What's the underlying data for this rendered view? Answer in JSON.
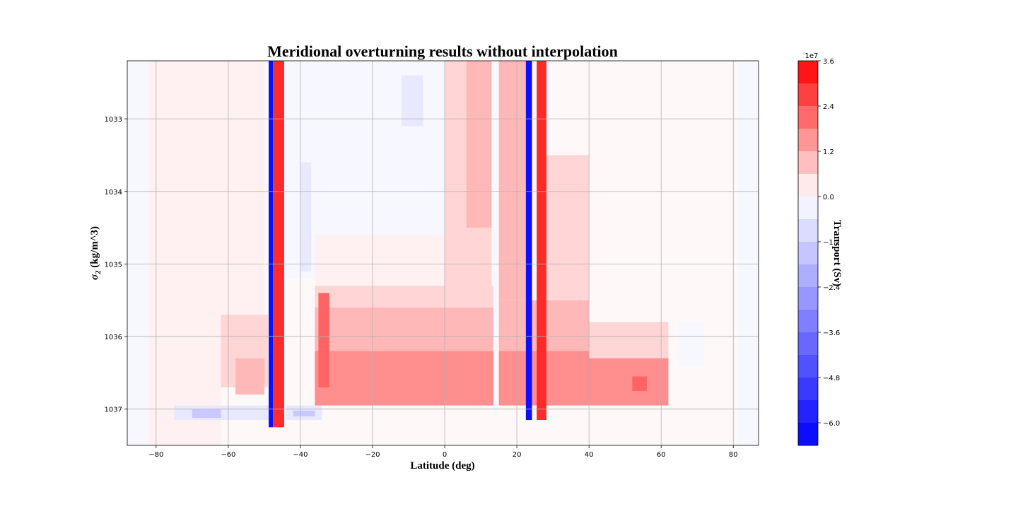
{
  "chart_data": {
    "type": "heatmap",
    "subtype": "filled-contour",
    "title": "Meridional overturning results without interpolation",
    "xlabel": "Latitude (deg)",
    "ylabel": "σ",
    "ylabel_sub": "2",
    "ylabel_rest": " (kg/m^3)",
    "xlim": [
      -88,
      87
    ],
    "ylim": [
      1037.5,
      1032.2
    ],
    "y_inverted": true,
    "xticks": [
      -80,
      -60,
      -40,
      -20,
      0,
      20,
      40,
      60,
      80
    ],
    "xtick_labels": [
      "−80",
      "−60",
      "−40",
      "−20",
      "0",
      "20",
      "40",
      "60",
      "80"
    ],
    "yticks": [
      1033,
      1034,
      1035,
      1036,
      1037
    ],
    "ytick_labels": [
      "1033",
      "1034",
      "1035",
      "1036",
      "1037"
    ],
    "grid": true,
    "colorscale": "bwr",
    "colorbar": {
      "label": "Transport (Sv)",
      "offset_text": "1e7",
      "range": [
        -6.6,
        3.6
      ],
      "tick_values": [
        3.6,
        2.4,
        1.2,
        0.0,
        -1.2,
        -2.4,
        -3.6,
        -4.8,
        -6.0
      ],
      "tick_labels": [
        "3.6",
        "2.4",
        "1.2",
        "0.0",
        "−1.2",
        "−2.4",
        "−3.6",
        "−4.8",
        "−6.0"
      ]
    },
    "regions": [
      {
        "x": [
          -88,
          -82
        ],
        "y": [
          1032.2,
          1037.5
        ],
        "value": -0.2
      },
      {
        "x": [
          -82,
          -62
        ],
        "y": [
          1032.2,
          1037.5
        ],
        "value": 0.2
      },
      {
        "x": [
          -62,
          -50
        ],
        "y": [
          1032.2,
          1035.7
        ],
        "value": 0.2
      },
      {
        "x": [
          -62,
          -49
        ],
        "y": [
          1035.7,
          1036.7
        ],
        "value": 0.6
      },
      {
        "x": [
          -58,
          -50
        ],
        "y": [
          1036.3,
          1036.8
        ],
        "value": 1.0
      },
      {
        "x": [
          -75,
          -48
        ],
        "y": [
          1036.95,
          1037.15
        ],
        "value": -0.6
      },
      {
        "x": [
          -70,
          -62
        ],
        "y": [
          1037.0,
          1037.12
        ],
        "value": -1.4
      },
      {
        "x": [
          -45,
          -20
        ],
        "y": [
          1032.2,
          1035.2
        ],
        "value": -0.2
      },
      {
        "x": [
          -40,
          -37
        ],
        "y": [
          1033.6,
          1035.1
        ],
        "value": -0.6
      },
      {
        "x": [
          -44,
          -34
        ],
        "y": [
          1036.95,
          1037.15
        ],
        "value": -0.6
      },
      {
        "x": [
          -42,
          -36
        ],
        "y": [
          1037.02,
          1037.1
        ],
        "value": -1.4
      },
      {
        "x": [
          -20,
          0
        ],
        "y": [
          1032.2,
          1034.6
        ],
        "value": -0.2
      },
      {
        "x": [
          -12,
          -6
        ],
        "y": [
          1032.4,
          1033.1
        ],
        "value": -0.6
      },
      {
        "x": [
          -36,
          0
        ],
        "y": [
          1034.6,
          1035.3
        ],
        "value": 0.2
      },
      {
        "x": [
          -36,
          14
        ],
        "y": [
          1035.3,
          1035.6
        ],
        "value": 0.6
      },
      {
        "x": [
          -36,
          14
        ],
        "y": [
          1035.6,
          1036.2
        ],
        "value": 1.0
      },
      {
        "x": [
          -36,
          14
        ],
        "y": [
          1036.2,
          1036.95
        ],
        "value": 1.6
      },
      {
        "x": [
          0,
          13
        ],
        "y": [
          1032.2,
          1035.3
        ],
        "value": 0.6
      },
      {
        "x": [
          6,
          13
        ],
        "y": [
          1032.2,
          1034.5
        ],
        "value": 1.0
      },
      {
        "x": [
          15,
          23
        ],
        "y": [
          1032.2,
          1035.5
        ],
        "value": 1.0
      },
      {
        "x": [
          28,
          40
        ],
        "y": [
          1033.5,
          1035.8
        ],
        "value": 0.6
      },
      {
        "x": [
          15,
          40
        ],
        "y": [
          1035.5,
          1036.2
        ],
        "value": 1.0
      },
      {
        "x": [
          15,
          62
        ],
        "y": [
          1036.2,
          1036.95
        ],
        "value": 1.6
      },
      {
        "x": [
          40,
          62
        ],
        "y": [
          1035.8,
          1036.3
        ],
        "value": 0.6
      },
      {
        "x": [
          52,
          56
        ],
        "y": [
          1036.55,
          1036.75
        ],
        "value": 2.2
      },
      {
        "x": [
          65,
          72
        ],
        "y": [
          1035.8,
          1036.4
        ],
        "value": -0.2
      },
      {
        "x": [
          81,
          87
        ],
        "y": [
          1032.2,
          1037.5
        ],
        "value": -0.2
      },
      {
        "x": [
          -48.8,
          -47.6
        ],
        "y": [
          1032.2,
          1037.25
        ],
        "value": -6.2
      },
      {
        "x": [
          -47.6,
          -44.5
        ],
        "y": [
          1032.2,
          1037.25
        ],
        "value": 3.0
      },
      {
        "x": [
          -35,
          -32
        ],
        "y": [
          1035.4,
          1036.7
        ],
        "value": 2.2
      },
      {
        "x": [
          13.5,
          14.5
        ],
        "y": [
          1032.2,
          1037.1
        ],
        "value": -0.2
      },
      {
        "x": [
          22.5,
          24.2
        ],
        "y": [
          1032.2,
          1037.15
        ],
        "value": -6.2
      },
      {
        "x": [
          25.5,
          28.2
        ],
        "y": [
          1032.2,
          1037.15
        ],
        "value": 3.0
      }
    ]
  }
}
